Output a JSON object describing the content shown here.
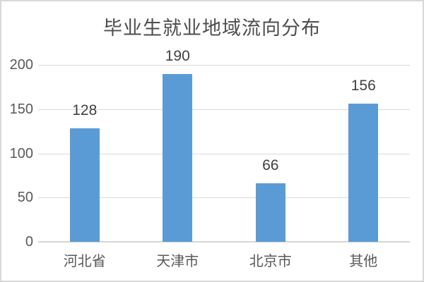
{
  "chart_data": {
    "type": "bar",
    "title": "毕业生就业地域流向分布",
    "categories": [
      "河北省",
      "天津市",
      "北京市",
      "其他"
    ],
    "values": [
      128,
      190,
      66,
      156
    ],
    "data_labels": [
      "128",
      "190",
      "66",
      "156"
    ],
    "xlabel": "",
    "ylabel": "",
    "ylim": [
      0,
      200
    ],
    "y_ticks": [
      0,
      50,
      100,
      150,
      200
    ],
    "grid": true,
    "legend": "none",
    "colors": {
      "bar": "#5B9BD5",
      "gridline": "#D9D9D9",
      "axis_line": "#D6D6D6",
      "title_text": "#4D4D4D",
      "data_label_text": "#404040",
      "tick_text": "#595959",
      "background": "#FFFFFF",
      "border": "#D9D9D9"
    }
  }
}
